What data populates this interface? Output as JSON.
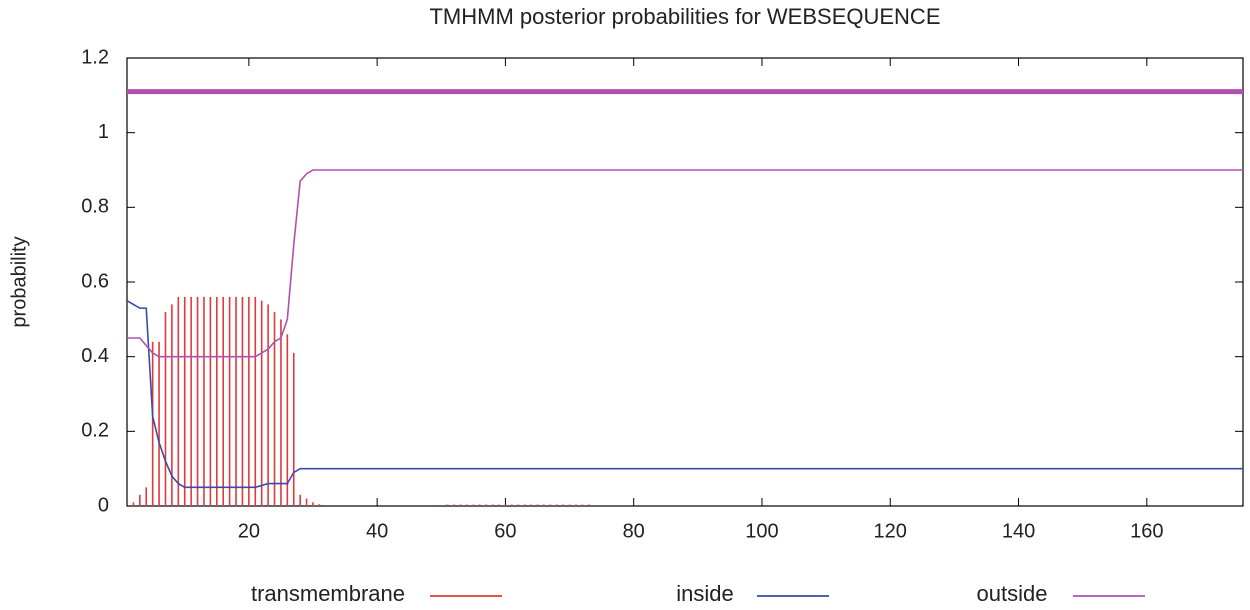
{
  "chart_data": {
    "type": "line",
    "title": "TMHMM posterior probabilities for WEBSEQUENCE",
    "y_label": "probability",
    "xlim": [
      1,
      175
    ],
    "xticks": [
      20,
      40,
      60,
      80,
      100,
      120,
      140,
      160
    ],
    "ylim": [
      0,
      1.2
    ],
    "yticks": [
      0,
      0.2,
      0.4,
      0.6,
      0.8,
      1,
      1.2
    ],
    "series": [
      {
        "name": "transmembrane",
        "color": "#e03a3a",
        "style": "impulses",
        "x": [
          2,
          3,
          4,
          5,
          6,
          7,
          8,
          9,
          10,
          11,
          12,
          13,
          14,
          15,
          16,
          17,
          18,
          19,
          20,
          21,
          22,
          23,
          24,
          25,
          26,
          27,
          28,
          29,
          30,
          31,
          51,
          52,
          53,
          54,
          55,
          56,
          57,
          58,
          59,
          60,
          61,
          62,
          63,
          64,
          65,
          66,
          67,
          68,
          69,
          70,
          71,
          72,
          73
        ],
        "values": [
          0.01,
          0.03,
          0.05,
          0.44,
          0.44,
          0.52,
          0.54,
          0.56,
          0.56,
          0.56,
          0.56,
          0.56,
          0.56,
          0.56,
          0.56,
          0.56,
          0.56,
          0.56,
          0.56,
          0.56,
          0.55,
          0.54,
          0.52,
          0.5,
          0.46,
          0.41,
          0.03,
          0.02,
          0.01,
          0.005,
          0.004,
          0.004,
          0.004,
          0.004,
          0.004,
          0.004,
          0.004,
          0.004,
          0.004,
          0.004,
          0.004,
          0.004,
          0.004,
          0.004,
          0.004,
          0.004,
          0.004,
          0.004,
          0.004,
          0.004,
          0.004,
          0.004,
          0.004
        ]
      },
      {
        "name": "inside",
        "color": "#3a4aa8",
        "style": "line",
        "x": [
          1,
          2,
          3,
          4,
          5,
          6,
          7,
          8,
          9,
          10,
          20,
          21,
          22,
          23,
          24,
          25,
          26,
          27,
          28,
          29,
          30,
          175
        ],
        "values": [
          0.55,
          0.54,
          0.53,
          0.53,
          0.24,
          0.17,
          0.12,
          0.08,
          0.06,
          0.05,
          0.05,
          0.05,
          0.055,
          0.06,
          0.06,
          0.06,
          0.06,
          0.09,
          0.1,
          0.1,
          0.1,
          0.1
        ]
      },
      {
        "name": "outside",
        "color": "#b050b0",
        "style": "line",
        "x": [
          1,
          2,
          3,
          4,
          5,
          6,
          20,
          21,
          22,
          23,
          24,
          25,
          26,
          27,
          28,
          29,
          30,
          175
        ],
        "values": [
          0.45,
          0.45,
          0.45,
          0.43,
          0.41,
          0.4,
          0.4,
          0.4,
          0.41,
          0.42,
          0.44,
          0.45,
          0.5,
          0.7,
          0.87,
          0.89,
          0.9,
          0.9
        ]
      }
    ],
    "topology": {
      "color": "#b050b0",
      "y": 1.11,
      "x": [
        1,
        175
      ]
    }
  }
}
